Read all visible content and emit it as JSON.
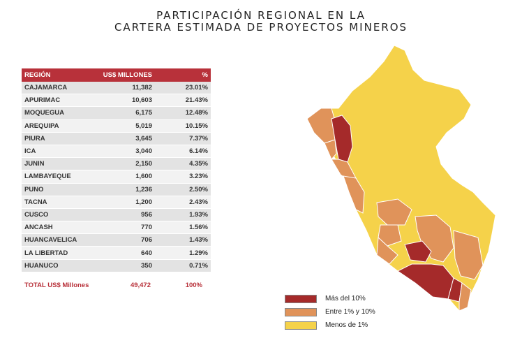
{
  "title": {
    "line1": "PARTICIPACIÓN REGIONAL EN LA",
    "line2": "CARTERA ESTIMADA DE PROYECTOS MINEROS"
  },
  "table": {
    "headers": [
      "REGIÓN",
      "US$ MILLONES",
      "%"
    ],
    "rows": [
      [
        "CAJAMARCA",
        "11,382",
        "23.01%"
      ],
      [
        "APURIMAC",
        "10,603",
        "21.43%"
      ],
      [
        "MOQUEGUA",
        "6,175",
        "12.48%"
      ],
      [
        "AREQUIPA",
        "5,019",
        "10.15%"
      ],
      [
        "PIURA",
        "3,645",
        "7.37%"
      ],
      [
        "ICA",
        "3,040",
        "6.14%"
      ],
      [
        "JUNIN",
        "2,150",
        "4.35%"
      ],
      [
        "LAMBAYEQUE",
        "1,600",
        "3.23%"
      ],
      [
        "PUNO",
        "1,236",
        "2.50%"
      ],
      [
        "TACNA",
        "1,200",
        "2.43%"
      ],
      [
        "CUSCO",
        "956",
        "1.93%"
      ],
      [
        "ANCASH",
        "770",
        "1.56%"
      ],
      [
        "HUANCAVELICA",
        "706",
        "1.43%"
      ],
      [
        "LA LIBERTAD",
        "640",
        "1.29%"
      ],
      [
        "HUANUCO",
        "350",
        "0.71%"
      ]
    ],
    "total": {
      "label": "TOTAL US$ Millones",
      "value": "49,472",
      "percent": "100%"
    }
  },
  "legend": [
    {
      "label": "Más del 10%",
      "color": "#a52a2a"
    },
    {
      "label": "Entre 1% y  10%",
      "color": "#e0935a"
    },
    {
      "label": "Menos de 1%",
      "color": "#f5d24a"
    }
  ],
  "colors": {
    "high": "#a52a2a",
    "mid": "#e0935a",
    "low": "#f5d24a",
    "header": "#b8313a"
  }
}
